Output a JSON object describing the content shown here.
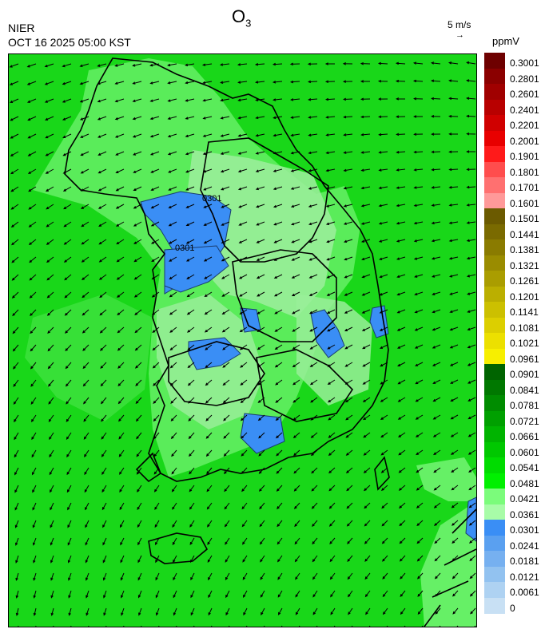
{
  "header": {
    "agency": "NIER",
    "timestamp": "OCT 16 2025 05:00 KST",
    "title_main": "O",
    "title_sub": "3",
    "wind_scale_label": "5 m/s",
    "unit": "ppmV"
  },
  "map": {
    "contour_labels": [
      "0301",
      "0301"
    ]
  },
  "legend": {
    "ticks": [
      "0.3001",
      "0.2801",
      "0.2601",
      "0.2401",
      "0.2201",
      "0.2001",
      "0.1901",
      "0.1801",
      "0.1701",
      "0.1601",
      "0.1501",
      "0.1441",
      "0.1381",
      "0.1321",
      "0.1261",
      "0.1201",
      "0.1141",
      "0.1081",
      "0.1021",
      "0.0961",
      "0.0901",
      "0.0841",
      "0.0781",
      "0.0721",
      "0.0661",
      "0.0601",
      "0.0541",
      "0.0481",
      "0.0421",
      "0.0361",
      "0.0301",
      "0.0241",
      "0.0181",
      "0.0121",
      "0.0061",
      "0"
    ],
    "colors": [
      "#6e0000",
      "#8b0000",
      "#a00000",
      "#b80000",
      "#d00000",
      "#e80000",
      "#ff1a1a",
      "#ff4d4d",
      "#ff7070",
      "#ff9999",
      "#6b5a00",
      "#7a6a00",
      "#8a7b00",
      "#9a8c00",
      "#aa9d00",
      "#bbaf00",
      "#ccc000",
      "#dccf00",
      "#ece000",
      "#f7ef00",
      "#006400",
      "#007800",
      "#008c00",
      "#00a000",
      "#00b400",
      "#00c800",
      "#00dc00",
      "#00f000",
      "#7bfc7b",
      "#a8fca8",
      "#3a8ef5",
      "#5aa0f0",
      "#76b0f0",
      "#92c2f0",
      "#aed2f2",
      "#c8e0f4"
    ]
  },
  "colors": {
    "dominant_green": "#19d719",
    "light_green": "#66f066",
    "pale_green": "#99ee99",
    "blue": "#3a8ef5"
  }
}
